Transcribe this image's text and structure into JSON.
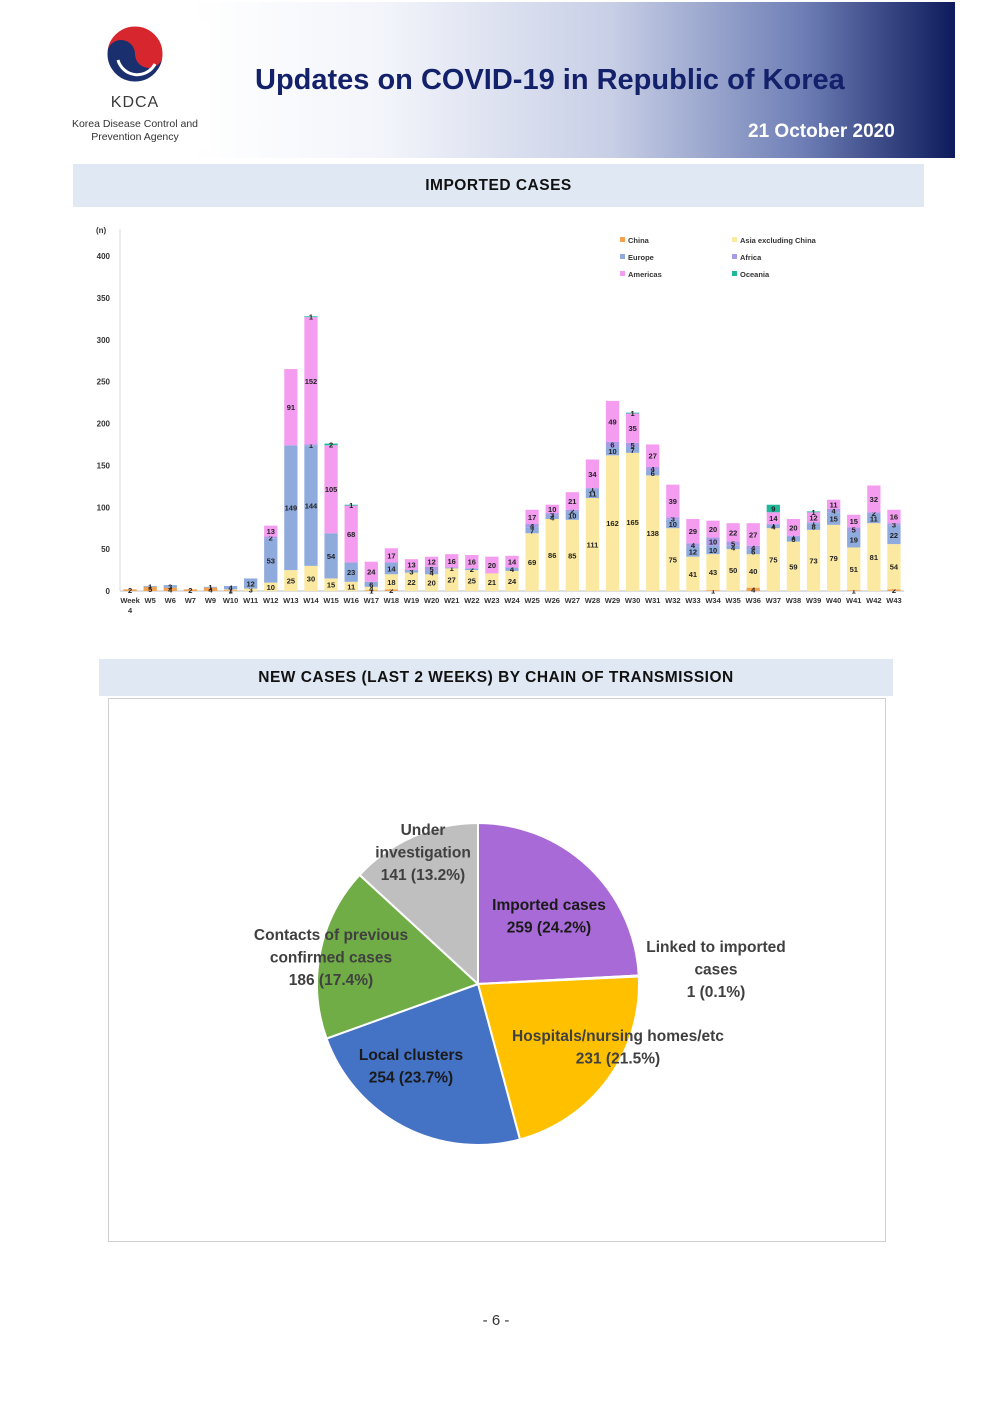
{
  "header": {
    "logo_text": "KDCA",
    "logo_subtitle_line1": "Korea Disease Control and",
    "logo_subtitle_line2": "Prevention Agency",
    "title": "Updates on COVID-19 in Republic of Korea",
    "date": "21 October 2020"
  },
  "section1": {
    "title": "IMPORTED  CASES"
  },
  "section2": {
    "title": "NEW  CASES  (LAST  2  WEEKS)  BY  CHAIN  OF  TRANSMISSION"
  },
  "page_number": "- 6 -",
  "chart_data": [
    {
      "type": "bar",
      "stacked": true,
      "unit_label": "(n)",
      "ylim": [
        0,
        400
      ],
      "yticks": [
        0,
        50,
        100,
        150,
        200,
        250,
        300,
        350,
        400
      ],
      "legend_position": "top-right",
      "categories": [
        "Week 4",
        "W5",
        "W6",
        "W7",
        "W9",
        "W10",
        "W11",
        "W12",
        "W13",
        "W14",
        "W15",
        "W16",
        "W17",
        "W18",
        "W19",
        "W20",
        "W21",
        "W22",
        "W23",
        "W24",
        "W25",
        "W26",
        "W27",
        "W28",
        "W29",
        "W30",
        "W31",
        "W32",
        "W33",
        "W34",
        "W35",
        "W36",
        "W37",
        "W38",
        "W39",
        "W40",
        "W41",
        "W42",
        "W43"
      ],
      "series": [
        {
          "name": "China",
          "color": "#f4a24f",
          "values": [
            2,
            5,
            4,
            2,
            4,
            1,
            0,
            0,
            0,
            0,
            0,
            0,
            1,
            2,
            0,
            0,
            0,
            0,
            0,
            0,
            0,
            0,
            0,
            0,
            0,
            0,
            0,
            0,
            0,
            1,
            0,
            4,
            0,
            0,
            0,
            0,
            1,
            0,
            2
          ]
        },
        {
          "name": "Asia excluding China",
          "color": "#fbe9a2",
          "values": [
            0,
            0,
            0,
            0,
            0,
            1,
            3,
            10,
            25,
            30,
            15,
            11,
            4,
            18,
            22,
            20,
            27,
            25,
            21,
            24,
            69,
            86,
            85,
            111,
            162,
            165,
            138,
            75,
            41,
            43,
            50,
            40,
            75,
            59,
            73,
            79,
            51,
            81,
            54
          ]
        },
        {
          "name": "Europe",
          "color": "#8faadc",
          "values": [
            0,
            1,
            3,
            0,
            1,
            4,
            12,
            53,
            149,
            144,
            54,
            23,
            6,
            14,
            3,
            4,
            1,
            2,
            0,
            4,
            7,
            4,
            10,
            11,
            10,
            7,
            6,
            10,
            12,
            10,
            4,
            6,
            4,
            6,
            8,
            15,
            19,
            11,
            22
          ]
        },
        {
          "name": "Africa",
          "color": "#a99be6",
          "values": [
            0,
            0,
            0,
            0,
            0,
            0,
            0,
            2,
            0,
            1,
            0,
            0,
            0,
            0,
            0,
            5,
            0,
            0,
            0,
            0,
            4,
            3,
            2,
            1,
            6,
            5,
            4,
            3,
            4,
            10,
            5,
            4,
            1,
            1,
            1,
            4,
            5,
            2,
            3
          ]
        },
        {
          "name": "Americas",
          "color": "#f49cf0",
          "values": [
            0,
            0,
            0,
            0,
            0,
            0,
            0,
            13,
            91,
            152,
            105,
            68,
            24,
            17,
            13,
            12,
            16,
            16,
            20,
            14,
            17,
            10,
            21,
            34,
            49,
            35,
            27,
            39,
            29,
            20,
            22,
            27,
            14,
            20,
            12,
            11,
            15,
            32,
            16
          ]
        },
        {
          "name": "Oceania",
          "color": "#1fb99a",
          "values": [
            0,
            0,
            0,
            0,
            0,
            0,
            0,
            0,
            0,
            1,
            2,
            1,
            0,
            0,
            0,
            0,
            0,
            0,
            0,
            0,
            0,
            0,
            0,
            0,
            0,
            1,
            0,
            0,
            0,
            0,
            0,
            0,
            9,
            0,
            1,
            0,
            0,
            0,
            0
          ]
        }
      ]
    },
    {
      "type": "pie",
      "slices": [
        {
          "label": "Imported cases",
          "value": 259,
          "pct": "24.2%",
          "display": "259 (24.2%)",
          "color": "#a86ad6"
        },
        {
          "label": "Linked to imported cases",
          "value": 1,
          "pct": "0.1%",
          "display": "1 (0.1%)",
          "color": "#7f5fbf"
        },
        {
          "label": "Hospitals/nursing homes/etc",
          "value": 231,
          "pct": "21.5%",
          "display": "231 (21.5%)",
          "color": "#ffc000"
        },
        {
          "label": "Local clusters",
          "value": 254,
          "pct": "23.7%",
          "display": "254 (23.7%)",
          "color": "#4472c4"
        },
        {
          "label": "Contacts of previous confirmed cases",
          "value": 186,
          "pct": "17.4%",
          "display": "186 (17.4%)",
          "color": "#70ad47"
        },
        {
          "label": "Under investigation",
          "value": 141,
          "pct": "13.2%",
          "display": "141 (13.2%)",
          "color": "#bfbfbf"
        }
      ]
    }
  ]
}
